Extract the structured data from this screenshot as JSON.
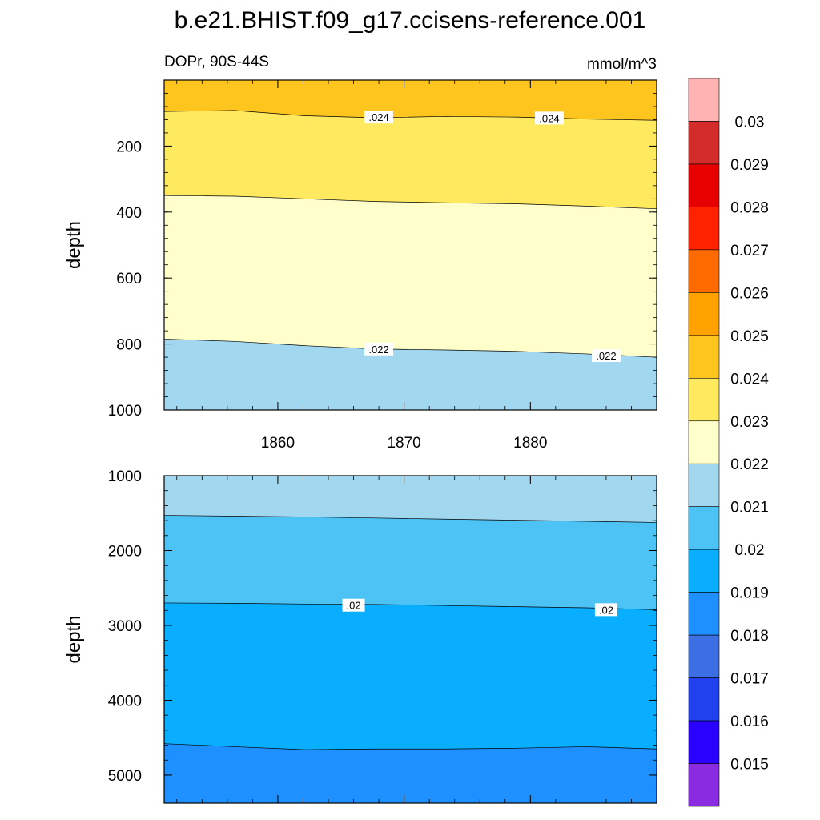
{
  "title": "b.e21.BHIST.f09_g17.ccisens-reference.001",
  "variable_label": "DOPr, 90S-44S",
  "units_label": "mmol/m^3",
  "chart_data": {
    "type": "heatmap",
    "x": {
      "range": [
        1851,
        1890
      ],
      "tick_labels": [
        "1860",
        "1870",
        "1880"
      ],
      "tick_values": [
        1860,
        1870,
        1880
      ],
      "minor_step": 2
    },
    "colorbar": {
      "levels": [
        0.015,
        0.016,
        0.017,
        0.018,
        0.019,
        0.02,
        0.021,
        0.022,
        0.023,
        0.024,
        0.025,
        0.026,
        0.027,
        0.028,
        0.029,
        0.03
      ],
      "labels": [
        "0.015",
        "0.016",
        "0.017",
        "0.018",
        "0.019",
        "0.02",
        "0.021",
        "0.022",
        "0.023",
        "0.024",
        "0.025",
        "0.026",
        "0.027",
        "0.028",
        "0.029",
        "0.03"
      ],
      "colors": [
        "#8a2be2",
        "#2a00ff",
        "#2140ee",
        "#3b6fe3",
        "#1e90ff",
        "#0aaeff",
        "#4dc3f5",
        "#a2d7f0",
        "#ffffcc",
        "#ffe95e",
        "#ffc51f",
        "#ffa200",
        "#ff6a00",
        "#ff2200",
        "#e60000",
        "#d42b2b",
        "#ffb2b2"
      ]
    },
    "panels": [
      {
        "ylabel": "depth",
        "ylim": [
          1000,
          0
        ],
        "y_tick_labels": [
          "200",
          "400",
          "600",
          "800",
          "1000"
        ],
        "y_tick_values": [
          200,
          400,
          600,
          800,
          1000
        ],
        "bands": [
          {
            "range": "0.024-0.025",
            "color": "#ffc51f"
          },
          {
            "range": "0.023-0.024",
            "color": "#ffe95e"
          },
          {
            "range": "0.022-0.023",
            "color": "#ffffcc"
          },
          {
            "range": "0.021-0.022",
            "color": "#a2d7f0"
          }
        ],
        "contours": [
          {
            "level": 0.024,
            "depths": [
              95,
              92,
              108,
              114,
              110,
              112,
              118,
              122
            ]
          },
          {
            "level": 0.0235,
            "depths": [
              350,
              352,
              360,
              368,
              372,
              375,
              382,
              390
            ]
          },
          {
            "level": 0.022,
            "depths": [
              785,
              792,
              805,
              815,
              818,
              822,
              830,
              840
            ]
          }
        ],
        "contour_labels": [
          {
            "text": ".024",
            "x": 1868,
            "depth": 112
          },
          {
            "text": ".024",
            "x": 1881.5,
            "depth": 115
          },
          {
            "text": ".022",
            "x": 1868,
            "depth": 815
          },
          {
            "text": ".022",
            "x": 1886,
            "depth": 835
          }
        ]
      },
      {
        "ylabel": "depth",
        "ylim": [
          5375,
          1000
        ],
        "y_tick_labels": [
          "1000",
          "2000",
          "3000",
          "4000",
          "5000"
        ],
        "y_tick_values": [
          1000,
          2000,
          3000,
          4000,
          5000
        ],
        "bands": [
          {
            "range": "0.021-0.022",
            "color": "#a2d7f0"
          },
          {
            "range": "0.02-0.021",
            "color": "#4dc3f5"
          },
          {
            "range": "0.019-0.02",
            "color": "#0aaeff"
          },
          {
            "range": "0.018-0.019",
            "color": "#1e90ff"
          }
        ],
        "contours": [
          {
            "level": 0.021,
            "depths": [
              1530,
              1540,
              1550,
              1565,
              1580,
              1595,
              1610,
              1625
            ]
          },
          {
            "level": 0.02,
            "depths": [
              2700,
              2705,
              2715,
              2720,
              2735,
              2750,
              2765,
              2790
            ]
          },
          {
            "level": 0.019,
            "depths": [
              4580,
              4620,
              4660,
              4650,
              4650,
              4640,
              4620,
              4650
            ]
          }
        ],
        "contour_labels": [
          {
            "text": ".02",
            "x": 1866,
            "depth": 2730
          },
          {
            "text": ".02",
            "x": 1886,
            "depth": 2790
          }
        ]
      }
    ]
  }
}
